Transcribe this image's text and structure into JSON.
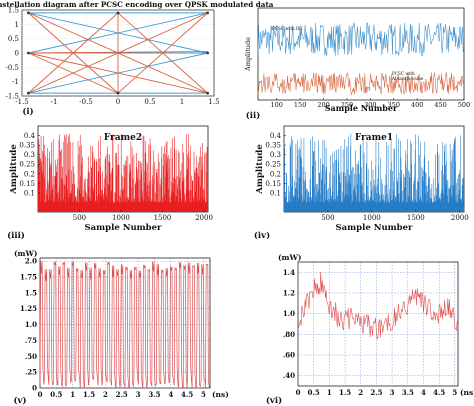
{
  "figure": {
    "panel_labels": [
      "(i)",
      "(ii)",
      "(iii)",
      "(iv)",
      "(v)",
      "(vi)"
    ]
  },
  "chart_data": [
    {
      "id": "i",
      "type": "line",
      "title": "Constellation diagram after PCSC encoding over QPSK modulated data",
      "xlim": [
        -1.5,
        1.5
      ],
      "ylim": [
        -1.5,
        1.5
      ],
      "xticks": [
        -1.5,
        -1,
        -0.5,
        0,
        0.5,
        1,
        1.5
      ],
      "yticks": [
        -1.5,
        -1,
        -0.5,
        0,
        0.5,
        1,
        1.5
      ],
      "grid": true,
      "points": [
        [
          -1.4,
          1.4
        ],
        [
          0,
          1.4
        ],
        [
          1.4,
          1.4
        ],
        [
          -1.4,
          0
        ],
        [
          1.4,
          0
        ],
        [
          -1.4,
          -1.4
        ],
        [
          0,
          -1.4
        ],
        [
          1.4,
          -1.4
        ]
      ],
      "segments": [
        {
          "from": [
            -1.4,
            1.4
          ],
          "to": [
            1.4,
            1.4
          ],
          "color": "#3aa0d8"
        },
        {
          "from": [
            -1.4,
            1.4
          ],
          "to": [
            1.4,
            0
          ],
          "color": "#3aa0d8"
        },
        {
          "from": [
            -1.4,
            1.4
          ],
          "to": [
            1.4,
            -1.4
          ],
          "color": "#d9623a"
        },
        {
          "from": [
            -1.4,
            1.4
          ],
          "to": [
            0,
            -1.4
          ],
          "color": "#d9623a"
        },
        {
          "from": [
            -1.4,
            0
          ],
          "to": [
            1.4,
            1.4
          ],
          "color": "#3aa0d8"
        },
        {
          "from": [
            -1.4,
            0
          ],
          "to": [
            1.4,
            0
          ],
          "color": "#3aa0d8"
        },
        {
          "from": [
            -1.4,
            0
          ],
          "to": [
            0,
            -1.4
          ],
          "color": "#d9623a"
        },
        {
          "from": [
            -1.4,
            0
          ],
          "to": [
            1.4,
            -1.4
          ],
          "color": "#d9623a"
        },
        {
          "from": [
            -1.4,
            -1.4
          ],
          "to": [
            1.4,
            1.4
          ],
          "color": "#d9623a"
        },
        {
          "from": [
            -1.4,
            -1.4
          ],
          "to": [
            0,
            1.4
          ],
          "color": "#d9623a"
        },
        {
          "from": [
            -1.4,
            -1.4
          ],
          "to": [
            1.4,
            -1.4
          ],
          "color": "#3aa0d8"
        },
        {
          "from": [
            -1.4,
            -1.4
          ],
          "to": [
            1.4,
            0
          ],
          "color": "#3aa0d8"
        },
        {
          "from": [
            0,
            1.4
          ],
          "to": [
            1.4,
            -1.4
          ],
          "color": "#d9623a"
        },
        {
          "from": [
            0,
            1.4
          ],
          "to": [
            0,
            -1.4
          ],
          "color": "#d9623a"
        },
        {
          "from": [
            0,
            -1.4
          ],
          "to": [
            1.4,
            1.4
          ],
          "color": "#d9623a"
        },
        {
          "from": [
            -1.4,
            0
          ],
          "to": [
            1.4,
            0.05
          ],
          "color": "#d9623a"
        }
      ]
    },
    {
      "id": "ii",
      "type": "line",
      "title": "",
      "xlabel": "Sample Number",
      "ylabel": "Amplitude",
      "xlim": [
        60,
        500
      ],
      "ylim": [
        0,
        0.1
      ],
      "xticks": [
        100,
        150,
        200,
        250,
        300,
        350,
        400,
        450,
        500
      ],
      "grid": false,
      "series": [
        {
          "name": "PCSC with DC",
          "color": "#3b8ec9",
          "mean": 0.066,
          "amplitude": 0.018
        },
        {
          "name": "PCSC with Absolute value",
          "color": "#d9623a",
          "mean": 0.018,
          "amplitude": 0.012
        }
      ],
      "annotations": [
        "PCSC with DC",
        "PCSC with Absolute value"
      ]
    },
    {
      "id": "iii",
      "type": "bar",
      "title": "Frame2",
      "xlabel": "Sample Number",
      "ylabel": "Amplitude",
      "xlim": [
        1,
        2048
      ],
      "ylim": [
        0,
        0.45
      ],
      "xticks": [
        500,
        1000,
        1500,
        2000
      ],
      "yticks": [
        0.1,
        0.15,
        0.2,
        0.25,
        0.3,
        0.35,
        0.4
      ],
      "color": "#e8191b",
      "grid": false
    },
    {
      "id": "iv",
      "type": "bar",
      "title": "Frame1",
      "xlabel": "Sample Number",
      "ylabel": "Amplitude",
      "xlim": [
        1,
        2048
      ],
      "ylim": [
        0,
        0.45
      ],
      "xticks": [
        500,
        1000,
        1500,
        2000
      ],
      "yticks": [
        0.1,
        0.15,
        0.2,
        0.25,
        0.3,
        0.35,
        0.4
      ],
      "color": "#1f77c4",
      "grid": false
    },
    {
      "id": "v",
      "type": "line",
      "title": "",
      "xunit": "(ns)",
      "yunit": "(mW)",
      "xlim": [
        0,
        5.2
      ],
      "ylim": [
        0,
        2.05
      ],
      "xticks": [
        0,
        0.5,
        1,
        1.5,
        2,
        2.5,
        3,
        3.5,
        4,
        4.5,
        5
      ],
      "yticks": [
        0,
        0.25,
        0.5,
        0.75,
        1,
        1.25,
        1.5,
        1.75,
        2
      ],
      "ytick_labels": [
        "0",
        ".25",
        ".50",
        ".75",
        "1.0",
        "1.25",
        "1.5",
        "1.75",
        "2.0"
      ],
      "color": "#e05050",
      "grid": true,
      "pulse_count": 38,
      "high": 2.0,
      "low": 0.0
    },
    {
      "id": "vi",
      "type": "line",
      "title": "",
      "xunit": "(ns)",
      "yunit": "(mW)",
      "xlim": [
        0,
        5.1
      ],
      "ylim": [
        0.3,
        1.5
      ],
      "xticks": [
        0,
        0.5,
        1,
        1.5,
        2,
        2.5,
        3,
        3.5,
        4,
        4.5,
        5
      ],
      "yticks": [
        0.4,
        0.6,
        0.8,
        1.0,
        1.2,
        1.4
      ],
      "ytick_labels": [
        ".40",
        ".60",
        ".80",
        "1.0",
        "1.2",
        "1.4"
      ],
      "color": "#e05050",
      "grid": true,
      "envelope": [
        [
          0,
          0.95
        ],
        [
          0.25,
          1.05
        ],
        [
          0.5,
          1.25
        ],
        [
          0.75,
          1.3
        ],
        [
          1,
          1.1
        ],
        [
          1.3,
          0.95
        ],
        [
          1.6,
          0.95
        ],
        [
          2,
          0.92
        ],
        [
          2.5,
          0.85
        ],
        [
          3,
          0.95
        ],
        [
          3.4,
          1.05
        ],
        [
          3.8,
          1.2
        ],
        [
          4.1,
          1.05
        ],
        [
          4.5,
          1.0
        ],
        [
          4.8,
          1.05
        ],
        [
          5.1,
          0.92
        ]
      ]
    }
  ]
}
